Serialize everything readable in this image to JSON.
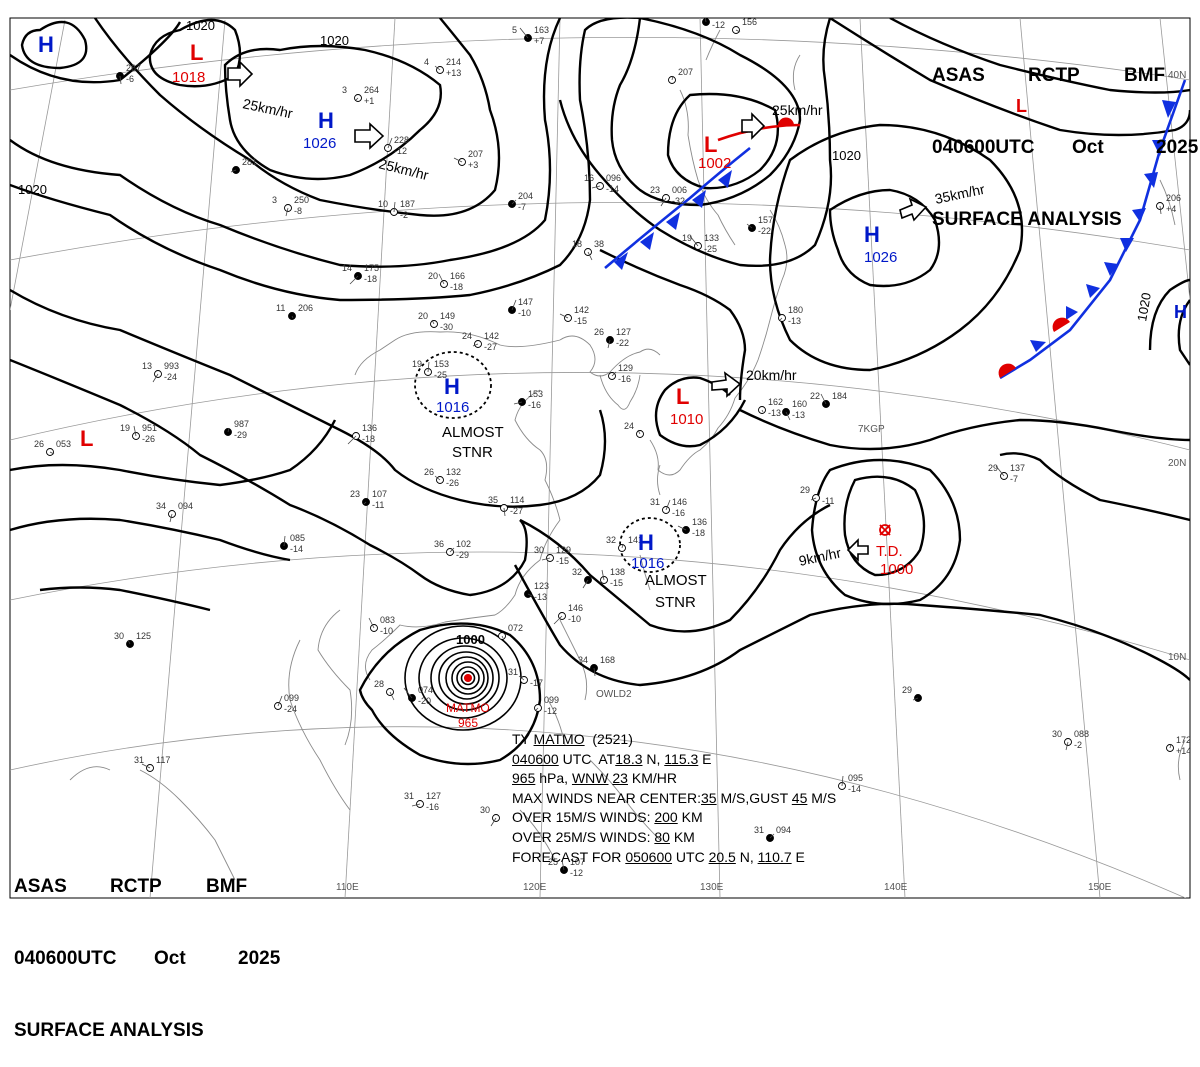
{
  "header": {
    "line1": [
      "ASAS",
      "RCTP",
      "BMF"
    ],
    "line2": [
      "040600UTC",
      "Oct",
      "2025"
    ],
    "line3": "SURFACE ANALYSIS"
  },
  "pressure_centers": [
    {
      "type": "H",
      "value": "",
      "color": "#0018c8"
    },
    {
      "type": "L",
      "value": "1018",
      "color": "#e00000"
    },
    {
      "type": "H",
      "value": "1026",
      "color": "#0018c8"
    },
    {
      "type": "L",
      "value": "1002",
      "color": "#e00000"
    },
    {
      "type": "H",
      "value": "1026",
      "color": "#0018c8"
    },
    {
      "type": "L",
      "value": "",
      "color": "#e00000"
    },
    {
      "type": "H",
      "value": "",
      "color": "#0018c8"
    },
    {
      "type": "L",
      "value": "",
      "color": "#e00000"
    },
    {
      "type": "H",
      "value": "1016",
      "color": "#0018c8"
    },
    {
      "type": "L",
      "value": "1010",
      "color": "#e00000"
    },
    {
      "type": "H",
      "value": "1016",
      "color": "#0018c8"
    }
  ],
  "almost_stnr": [
    "ALMOST",
    "STNR"
  ],
  "td": {
    "label": "T.D.",
    "value": "1000",
    "color": "#e00000"
  },
  "typhoon": {
    "name": "MATMO",
    "pressure": "965",
    "isobar_label": "1000",
    "color": "#e00000"
  },
  "isobar_labels": [
    "1020",
    "1020",
    "1020",
    "1020",
    "1020"
  ],
  "motion_labels": [
    "25km/hr",
    "25km/hr",
    "25km/hr",
    "35km/hr",
    "20km/hr",
    "9km/hr"
  ],
  "longitude_labels": [
    "110E",
    "120E",
    "130E",
    "140E",
    "150E"
  ],
  "latitude_labels": [
    "40N",
    "20N",
    "10N"
  ],
  "extra_labels": [
    "OWLD2",
    "7KGP"
  ],
  "storm_info": {
    "line1": [
      "TY ",
      "MATMO",
      "  (2521)"
    ],
    "line2": [
      "040600",
      " UTC  AT",
      "18.3",
      " N, ",
      "115.3",
      " E"
    ],
    "line3": [
      "965",
      " hPa, ",
      "WNW",
      " ",
      "23",
      " KM/HR"
    ],
    "line4": [
      "MAX WINDS NEAR CENTER:",
      "35",
      " M/S,GUST ",
      "45",
      " M/S"
    ],
    "line5": [
      "OVER 15M/S WINDS: ",
      "200",
      " KM"
    ],
    "line6": [
      "OVER 25M/S WINDS: ",
      "80",
      " KM"
    ],
    "line7": [
      "FORECAST FOR ",
      "050600",
      " UTC ",
      "20.5",
      " N, ",
      "110.7",
      " E"
    ]
  },
  "station_plots": [
    {
      "t": "5",
      "p": "163",
      "d": "+7"
    },
    {
      "t": "4",
      "p": "214",
      "d": "+13"
    },
    {
      "t": "3",
      "p": "264",
      "d": "+1"
    },
    {
      "t": "",
      "p": "267",
      "d": "-6"
    },
    {
      "t": "",
      "p": "228",
      "d": "-12"
    },
    {
      "t": "",
      "p": "207",
      "d": "+3"
    },
    {
      "t": "",
      "p": "281",
      "d": ""
    },
    {
      "t": "3",
      "p": "250",
      "d": "-8"
    },
    {
      "t": "10",
      "p": "187",
      "d": "-2"
    },
    {
      "t": "",
      "p": "204",
      "d": "-7"
    },
    {
      "t": "16",
      "p": "096",
      "d": "-14"
    },
    {
      "t": "23",
      "p": "006",
      "d": "-32"
    },
    {
      "t": "",
      "p": "156",
      "d": "-12"
    },
    {
      "t": "",
      "p": "207",
      "d": ""
    },
    {
      "t": "",
      "p": "156",
      "d": ""
    },
    {
      "t": "14",
      "p": "175",
      "d": "-18"
    },
    {
      "t": "20",
      "p": "166",
      "d": "-18"
    },
    {
      "t": "20",
      "p": "149",
      "d": "-30"
    },
    {
      "t": "11",
      "p": "206",
      "d": ""
    },
    {
      "t": "18",
      "p": "38",
      "d": ""
    },
    {
      "t": "19",
      "p": "133",
      "d": "-25"
    },
    {
      "t": "",
      "p": "157",
      "d": "-22"
    },
    {
      "t": "",
      "p": "180",
      "d": "-13"
    },
    {
      "t": "",
      "p": "206",
      "d": "+4"
    },
    {
      "t": "",
      "p": "147",
      "d": "-10"
    },
    {
      "t": "",
      "p": "142",
      "d": "-15"
    },
    {
      "t": "24",
      "p": "142",
      "d": "-27"
    },
    {
      "t": "26",
      "p": "127",
      "d": "-22"
    },
    {
      "t": "19",
      "p": "153",
      "d": "-25"
    },
    {
      "t": "",
      "p": "129",
      "d": "-16"
    },
    {
      "t": "",
      "p": "153",
      "d": "-16"
    },
    {
      "t": "13",
      "p": "993",
      "d": "-24"
    },
    {
      "t": "19",
      "p": "951",
      "d": "-26"
    },
    {
      "t": "",
      "p": "987",
      "d": "-29"
    },
    {
      "t": "26",
      "p": "053",
      "d": ""
    },
    {
      "t": "",
      "p": "136",
      "d": "-18"
    },
    {
      "t": "22",
      "p": "184",
      "d": ""
    },
    {
      "t": "24",
      "p": "",
      "d": ""
    },
    {
      "t": "",
      "p": "162",
      "d": "-13"
    },
    {
      "t": "",
      "p": "160",
      "d": "-13"
    },
    {
      "t": "29",
      "p": "137",
      "d": "-7"
    },
    {
      "t": "26",
      "p": "132",
      "d": "-26"
    },
    {
      "t": "23",
      "p": "107",
      "d": "-11"
    },
    {
      "t": "35",
      "p": "114",
      "d": "-27"
    },
    {
      "t": "31",
      "p": "146",
      "d": "-16"
    },
    {
      "t": "",
      "p": "136",
      "d": "-18"
    },
    {
      "t": "29",
      "p": "",
      "d": "-11"
    },
    {
      "t": "34",
      "p": "094",
      "d": ""
    },
    {
      "t": "",
      "p": "085",
      "d": "-14"
    },
    {
      "t": "36",
      "p": "102",
      "d": "-29"
    },
    {
      "t": "30",
      "p": "129",
      "d": "-15"
    },
    {
      "t": "32",
      "p": "",
      "d": ""
    },
    {
      "t": "",
      "p": "138",
      "d": "-15"
    },
    {
      "t": "32",
      "p": "141",
      "d": ""
    },
    {
      "t": "",
      "p": "123",
      "d": "-13"
    },
    {
      "t": "",
      "p": "146",
      "d": "-10"
    },
    {
      "t": "",
      "p": "083",
      "d": "-10"
    },
    {
      "t": "30",
      "p": "125",
      "d": ""
    },
    {
      "t": "",
      "p": "072",
      "d": ""
    },
    {
      "t": "28",
      "p": "",
      "d": ""
    },
    {
      "t": "",
      "p": "074",
      "d": "-20"
    },
    {
      "t": "31",
      "p": "",
      "d": "-17"
    },
    {
      "t": "",
      "p": "099",
      "d": "-12"
    },
    {
      "t": "34",
      "p": "168",
      "d": ""
    },
    {
      "t": "",
      "p": "099",
      "d": "-24"
    },
    {
      "t": "31",
      "p": "117",
      "d": ""
    },
    {
      "t": "29",
      "p": "",
      "d": ""
    },
    {
      "t": "30",
      "p": "088",
      "d": "-2"
    },
    {
      "t": "",
      "p": "095",
      "d": "-14"
    },
    {
      "t": "31",
      "p": "094",
      "d": ""
    },
    {
      "t": "31",
      "p": "127",
      "d": "-16"
    },
    {
      "t": "30",
      "p": "",
      "d": ""
    },
    {
      "t": "25",
      "p": "107",
      "d": "-12"
    },
    {
      "t": "",
      "p": "172",
      "d": "+14"
    }
  ]
}
